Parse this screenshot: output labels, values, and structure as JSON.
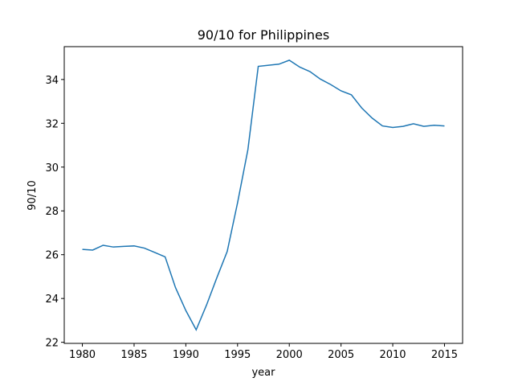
{
  "chart_data": {
    "type": "line",
    "title": "90/10 for Philippines",
    "x_label": "year",
    "y_label": "90/10",
    "x": [
      1980,
      1981,
      1982,
      1983,
      1984,
      1985,
      1986,
      1987,
      1988,
      1989,
      1990,
      1991,
      1992,
      1993,
      1994,
      1995,
      1996,
      1997,
      1998,
      1999,
      2000,
      2001,
      2002,
      2003,
      2004,
      2005,
      2006,
      2007,
      2008,
      2009,
      2010,
      2011,
      2012,
      2013,
      2014,
      2015
    ],
    "series": [
      {
        "color": "#1f77b4",
        "values": [
          26.24,
          26.21,
          26.43,
          26.35,
          26.38,
          26.4,
          26.3,
          26.1,
          25.9,
          24.5,
          23.45,
          22.57,
          23.7,
          24.95,
          26.15,
          28.37,
          30.8,
          34.6,
          34.65,
          34.7,
          34.88,
          34.57,
          34.36,
          34.02,
          33.77,
          33.48,
          33.3,
          32.7,
          32.24,
          31.88,
          31.81,
          31.86,
          31.98,
          31.86,
          31.91,
          31.88
        ]
      }
    ],
    "xlim": [
      1978.25,
      2016.75
    ],
    "ylim": [
      21.95,
      35.5
    ],
    "xticks": [
      1980,
      1985,
      1990,
      1995,
      2000,
      2005,
      2010,
      2015
    ],
    "yticks": [
      22,
      24,
      26,
      28,
      30,
      32,
      34
    ]
  }
}
